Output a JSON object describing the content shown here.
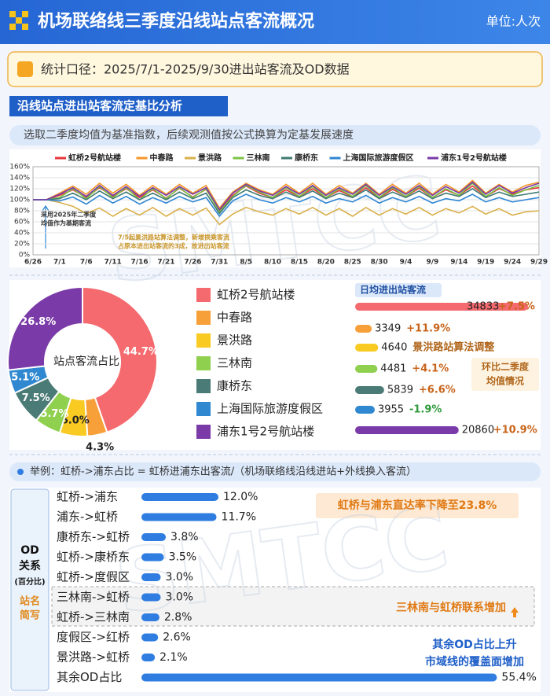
{
  "header": {
    "title": "机场联络线三季度沿线站点客流概况",
    "unit": "单位:人次"
  },
  "stat_note": "统计口径：2025/7/1-2025/9/30进出站客流及OD数据",
  "section_title": "沿线站点进出站客流定基比分析",
  "section_subtitle": "选取二季度均值为基准指数，后续观测值按公式换算为定基发展速度",
  "watermark": "SMTCC",
  "chart_data": [
    {
      "type": "line",
      "categories": [
        "6/26",
        null,
        "7/1",
        null,
        "7/6",
        null,
        "7/11",
        null,
        "7/16",
        null,
        "7/21",
        null,
        "7/26",
        null,
        "7/31",
        null,
        "8/5",
        null,
        "8/10",
        null,
        "8/15",
        null,
        "8/20",
        null,
        "8/25",
        null,
        "8/30",
        null,
        "9/4",
        null,
        "9/9",
        null,
        "9/14",
        null,
        "9/19",
        null,
        "9/24",
        null,
        "9/29"
      ],
      "ylim": [
        0,
        160
      ],
      "yticks": [
        {
          "value": 0,
          "label": "0%"
        },
        {
          "value": 20,
          "label": "20%"
        },
        {
          "value": 40,
          "label": "40%"
        },
        {
          "value": 60,
          "label": "60%"
        },
        {
          "value": 80,
          "label": "80%"
        },
        {
          "value": 100,
          "label": "100%"
        },
        {
          "value": 120,
          "label": "120%"
        },
        {
          "value": 140,
          "label": "140%"
        },
        {
          "value": 160,
          "label": "160%"
        }
      ],
      "grid": true,
      "legend": "top",
      "annotations": [
        "采用2025年二季度",
        "均值作为基期客流",
        "7/5起景洪路站算法调整，新增换乘客流",
        "占原本进出站客流的3成，故进出站客流"
      ],
      "series": [
        {
          "name": "虹桥2号航站楼",
          "color": "#e8363a",
          "values": [
            100,
            100,
            108,
            118,
            104,
            122,
            106,
            120,
            104,
            118,
            103,
            121,
            105,
            119,
            80,
            108,
            125,
            112,
            104,
            118,
            106,
            120,
            104,
            117,
            105,
            122,
            103,
            119,
            106,
            121,
            104,
            118,
            108,
            125,
            106,
            120,
            110,
            118,
            122
          ]
        },
        {
          "name": "中春路",
          "color": "#f5962a",
          "values": [
            100,
            100,
            112,
            125,
            110,
            130,
            112,
            128,
            108,
            126,
            110,
            128,
            112,
            126,
            85,
            114,
            130,
            118,
            110,
            128,
            112,
            130,
            110,
            126,
            112,
            130,
            110,
            128,
            112,
            130,
            110,
            128,
            114,
            135,
            112,
            128,
            114,
            126,
            132
          ]
        },
        {
          "name": "景洪路",
          "color": "#d9b04a",
          "values": [
            100,
            100,
            95,
            88,
            75,
            85,
            70,
            84,
            72,
            86,
            70,
            84,
            72,
            85,
            55,
            74,
            86,
            78,
            72,
            84,
            74,
            86,
            72,
            84,
            70,
            86,
            72,
            84,
            74,
            86,
            72,
            84,
            76,
            88,
            74,
            84,
            72,
            78,
            80
          ]
        },
        {
          "name": "三林南",
          "color": "#7cc243",
          "values": [
            100,
            100,
            104,
            120,
            102,
            124,
            104,
            122,
            100,
            120,
            102,
            122,
            104,
            120,
            78,
            106,
            126,
            114,
            104,
            122,
            106,
            124,
            104,
            120,
            106,
            126,
            104,
            122,
            106,
            124,
            104,
            120,
            108,
            130,
            106,
            122,
            108,
            118,
            126
          ]
        },
        {
          "name": "康桥东",
          "color": "#3f7a73",
          "values": [
            100,
            100,
            102,
            112,
            100,
            116,
            102,
            114,
            100,
            112,
            100,
            114,
            102,
            112,
            75,
            104,
            118,
            108,
            102,
            114,
            104,
            116,
            102,
            112,
            104,
            118,
            102,
            114,
            104,
            116,
            102,
            112,
            106,
            120,
            104,
            114,
            106,
            110,
            114
          ]
        },
        {
          "name": "上海国际旅游度假区",
          "color": "#2f86d3",
          "values": [
            100,
            100,
            98,
            105,
            92,
            108,
            94,
            106,
            92,
            104,
            94,
            106,
            96,
            104,
            70,
            98,
            110,
            100,
            94,
            104,
            96,
            106,
            94,
            102,
            96,
            108,
            94,
            104,
            96,
            106,
            94,
            102,
            98,
            110,
            96,
            104,
            96,
            100,
            104
          ]
        },
        {
          "name": "浦东1号2号航站楼",
          "color": "#7a3aa8",
          "values": [
            100,
            100,
            110,
            122,
            106,
            126,
            108,
            124,
            106,
            122,
            108,
            124,
            110,
            122,
            82,
            112,
            128,
            116,
            108,
            124,
            110,
            126,
            108,
            122,
            110,
            128,
            108,
            124,
            110,
            126,
            108,
            124,
            112,
            132,
            110,
            126,
            112,
            122,
            130
          ]
        }
      ]
    },
    {
      "type": "pie",
      "title": "站点客流占比",
      "categories": [
        "虹桥2号航站楼",
        "中春路",
        "景洪路",
        "三林南",
        "康桥东",
        "上海国际旅游度假区",
        "浦东1号2号航站楼"
      ],
      "values": [
        44.7,
        4.3,
        6.0,
        5.7,
        7.5,
        5.1,
        26.8
      ],
      "value_labels": [
        "44.7%",
        "4.3%",
        "6.0%",
        "5.7%",
        "7.5%",
        "5.1%",
        "26.8%"
      ],
      "colors": [
        "#f46a6e",
        "#f7a03a",
        "#f9ca21",
        "#8fd04f",
        "#4b7b76",
        "#2f88d0",
        "#7a3aa8"
      ]
    },
    {
      "type": "bar",
      "title": "日均进出站客流",
      "orientation": "horizontal",
      "categories": [
        "虹桥2号航站楼",
        "中春路",
        "景洪路",
        "三林南",
        "康桥东",
        "上海国际旅游度假区",
        "浦东1号2号航站楼"
      ],
      "values": [
        34833,
        3349,
        4640,
        4481,
        5839,
        3955,
        20860
      ],
      "colors": [
        "#f46a6e",
        "#f7a03a",
        "#f9ca21",
        "#8fd04f",
        "#4b7b76",
        "#2f88d0",
        "#7a3aa8"
      ],
      "xlim": [
        0,
        38000
      ],
      "changes": [
        7.5,
        11.9,
        null,
        4.1,
        6.6,
        -1.9,
        10.9
      ],
      "change_labels": [
        "+7.5%",
        "+11.9%",
        "景洪路站算法调整",
        "+4.1%",
        "+6.6%",
        "-1.9%",
        "+10.9%"
      ],
      "annotations": [
        "环比二季度",
        "均值情况"
      ]
    },
    {
      "type": "bar",
      "orientation": "horizontal",
      "title": "举例：虹桥->浦东占比 = 虹桥进浦东出客流/（机场联络线沿线进站+外线换入客流）",
      "side_label": [
        "OD",
        "关系",
        "(百分比)"
      ],
      "abbr_label": [
        "站名",
        "简写"
      ],
      "categories": [
        "虹桥->浦东",
        "浦东->虹桥",
        "康桥东->虹桥",
        "虹桥->康桥东",
        "虹桥->度假区",
        "三林南->虹桥",
        "虹桥->三林南",
        "度假区->红桥",
        "景洪路->虹桥",
        "其余OD占比"
      ],
      "values": [
        12.0,
        11.7,
        3.8,
        3.5,
        3.0,
        3.0,
        2.8,
        2.6,
        2.1,
        55.4
      ],
      "value_labels": [
        "12.0%",
        "11.7%",
        "3.8%",
        "3.5%",
        "3.0%",
        "3.0%",
        "2.8%",
        "2.6%",
        "2.1%",
        "55.4%"
      ],
      "color": "#2f7de1",
      "xlim": [
        0,
        60
      ],
      "annotations": [
        "虹桥与浦东直达率下降至23.8%",
        "三林南与虹桥联系增加",
        "其余OD占比上升",
        "市域线的覆盖面增加"
      ]
    }
  ]
}
